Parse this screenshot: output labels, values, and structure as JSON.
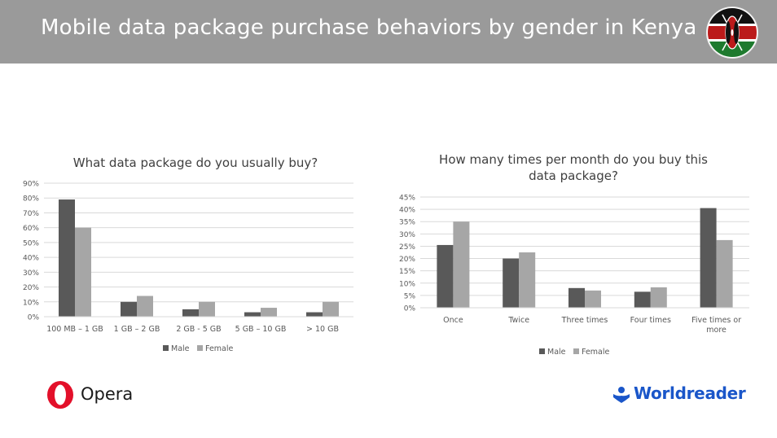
{
  "header": {
    "title": "Mobile data package purchase behaviors by gender in Kenya",
    "background": "#9a9a9a",
    "flag_icon": "kenya-flag-icon"
  },
  "colors": {
    "male": "#595959",
    "female": "#a6a6a6",
    "brand_worldreader": "#1a56c9",
    "brand_opera": "#e3102a"
  },
  "chart_data": [
    {
      "type": "bar",
      "title": "What data package do you usually buy?",
      "categories": [
        "100 MB – 1 GB",
        "1 GB – 2 GB",
        "2 GB - 5 GB",
        "5 GB – 10 GB",
        "> 10 GB"
      ],
      "series": [
        {
          "name": "Male",
          "values": [
            79,
            10,
            5,
            3,
            3
          ]
        },
        {
          "name": "Female",
          "values": [
            60,
            14,
            10,
            6,
            10
          ]
        }
      ],
      "ylim": [
        0,
        90
      ],
      "yticks": [
        "0%",
        "10%",
        "20%",
        "30%",
        "40%",
        "50%",
        "60%",
        "70%",
        "80%",
        "90%"
      ],
      "grid": true,
      "legend": "bottom"
    },
    {
      "type": "bar",
      "title": "How many times per month do you buy this data package?",
      "title_lines": [
        "How many times per month do you buy this",
        "data package?"
      ],
      "categories": [
        "Once",
        "Twice",
        "Three times",
        "Four times",
        "Five times or more"
      ],
      "category_lines": [
        [
          "Once"
        ],
        [
          "Twice"
        ],
        [
          "Three times"
        ],
        [
          "Four times"
        ],
        [
          "Five times or",
          "more"
        ]
      ],
      "series": [
        {
          "name": "Male",
          "values": [
            25.5,
            20,
            8,
            6.5,
            40.5
          ]
        },
        {
          "name": "Female",
          "values": [
            35,
            22.5,
            7,
            8.3,
            27.5
          ]
        }
      ],
      "ylim": [
        0,
        45
      ],
      "yticks": [
        "0%",
        "5%",
        "10%",
        "15%",
        "20%",
        "25%",
        "30%",
        "35%",
        "40%",
        "45%"
      ],
      "grid": true,
      "legend": "bottom"
    }
  ],
  "logos": {
    "opera": {
      "text": "Opera",
      "icon": "opera-logo-icon"
    },
    "worldreader": {
      "text": "Worldreader",
      "icon": "worldreader-logo-icon"
    }
  }
}
